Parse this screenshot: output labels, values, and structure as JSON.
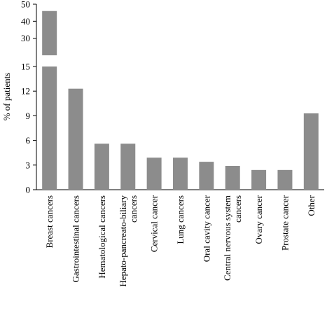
{
  "chart_data": {
    "type": "bar",
    "broken_axis": true,
    "xlabel": "",
    "ylabel": "% of patients",
    "ylim": [
      0,
      50
    ],
    "lower_segment": {
      "range": [
        0,
        15
      ],
      "ticks": [
        0,
        3,
        6,
        9,
        12,
        15
      ]
    },
    "upper_segment": {
      "range": [
        20,
        50
      ],
      "ticks": [
        30,
        40,
        50
      ]
    },
    "grid": false,
    "legend": "none",
    "categories": [
      [
        "Breast cancers"
      ],
      [
        "Gastrointestinal cancers"
      ],
      [
        "Hematological cancers"
      ],
      [
        "Hepato-pancreato-biliary",
        "cancers"
      ],
      [
        "Cervical cancer"
      ],
      [
        "Lung cancers"
      ],
      [
        "Oral cavity cancer"
      ],
      [
        "Central nervous system",
        "cancers"
      ],
      [
        "Ovary cancer"
      ],
      [
        "Prostate cancer"
      ],
      [
        "Other"
      ]
    ],
    "values": [
      46,
      12.3,
      5.6,
      5.6,
      3.9,
      3.9,
      3.4,
      2.9,
      2.4,
      2.4,
      9.3
    ],
    "bar_color": "#8c8c8c",
    "axis_color": "#000000"
  }
}
